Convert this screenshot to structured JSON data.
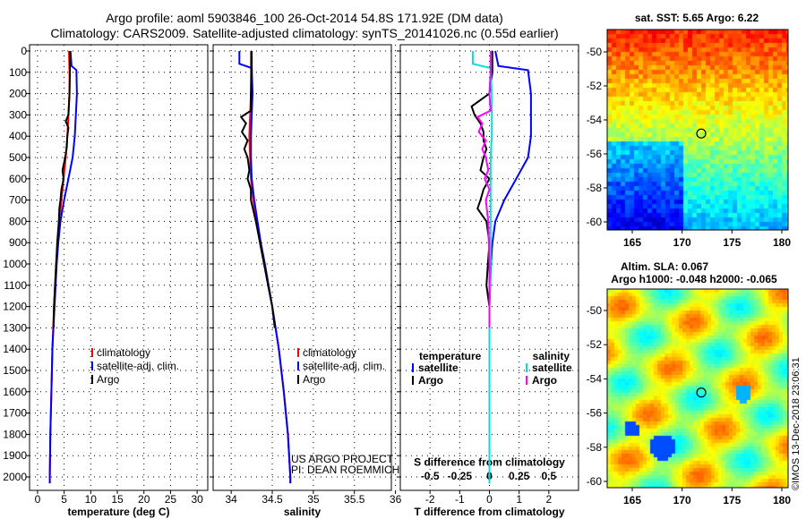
{
  "title_line1": "Argo profile: aoml 5903846_100 26-Oct-2014 54.8S 171.92E (DM data)",
  "title_line2": "Climatology: CARS2009. Satellite-adjusted climatology: synTS_20141026.nc (0.55d earlier)",
  "watermark": "©IMOS 13-Dec-2018 23:06:31",
  "colors": {
    "climatology": "#ff0000",
    "satellite": "#0000ff",
    "argo": "#000000",
    "sal_satellite": "#00e0e0",
    "sal_argo": "#ff00ff"
  },
  "depth_ticks": [
    0,
    100,
    200,
    300,
    400,
    500,
    600,
    700,
    800,
    900,
    1000,
    1100,
    1200,
    1300,
    1400,
    1500,
    1600,
    1700,
    1800,
    1900,
    2000
  ],
  "chart_data": [
    {
      "type": "line",
      "xlabel": "temperature (deg C)",
      "xticks": [
        0,
        5,
        10,
        15,
        20,
        25,
        30
      ],
      "xlim": [
        -1.5,
        32
      ],
      "ylim": [
        2060,
        -30
      ],
      "legend": [
        "climatology",
        "satellite-adj. clim.",
        "Argo"
      ],
      "series": [
        {
          "name": "climatology",
          "color": "#ff0000",
          "depth": [
            0,
            100,
            200,
            300,
            400,
            500,
            600,
            700,
            800,
            900,
            1000,
            1200,
            1400,
            1600,
            1800,
            2000,
            2030
          ],
          "values": [
            5.9,
            6.0,
            6.0,
            5.8,
            5.6,
            5.3,
            4.9,
            4.5,
            4.1,
            3.8,
            3.5,
            3.1,
            2.8,
            2.6,
            2.4,
            2.3,
            2.3
          ]
        },
        {
          "name": "satellite-adj. clim.",
          "color": "#0000ff",
          "depth": [
            0,
            70,
            90,
            200,
            300,
            400,
            500,
            600,
            700,
            800,
            900,
            1000,
            1200,
            1400,
            1600,
            1800,
            2000,
            2030
          ],
          "values": [
            6.2,
            6.4,
            7.3,
            7.4,
            7.2,
            7.0,
            6.6,
            5.8,
            5.0,
            4.3,
            3.9,
            3.6,
            3.2,
            2.8,
            2.6,
            2.4,
            2.3,
            2.3
          ]
        },
        {
          "name": "Argo",
          "color": "#000000",
          "depth": [
            0,
            100,
            200,
            300,
            330,
            360,
            400,
            450,
            500,
            560,
            600,
            650,
            700,
            740,
            800,
            900,
            1000,
            1100,
            1200,
            1300
          ],
          "values": [
            6.1,
            6.1,
            6.0,
            5.8,
            5.3,
            5.8,
            5.6,
            5.5,
            5.2,
            4.7,
            4.9,
            4.5,
            4.3,
            4.1,
            4.0,
            3.7,
            3.5,
            3.3,
            3.1,
            3.0
          ]
        }
      ]
    },
    {
      "type": "line",
      "xlabel": "salinity",
      "xticks": [
        34,
        34.5,
        35,
        35.5,
        36
      ],
      "xlim": [
        33.78,
        35.95
      ],
      "ylim": [
        2060,
        -30
      ],
      "legend": [
        "climatology",
        "satellite-adj. clim.",
        "Argo"
      ],
      "annotations": [
        "US ARGO PROJECT",
        "PI: DEAN ROEMMICH"
      ],
      "series": [
        {
          "name": "climatology",
          "color": "#ff0000",
          "depth": [
            0,
            100,
            200,
            300,
            400,
            500,
            600,
            700,
            800,
            900,
            1000,
            1200,
            1400,
            1600,
            1800,
            2000,
            2030
          ],
          "values": [
            34.24,
            34.24,
            34.24,
            34.23,
            34.22,
            34.23,
            34.24,
            34.27,
            34.31,
            34.35,
            34.4,
            34.5,
            34.58,
            34.64,
            34.69,
            34.72,
            34.72
          ]
        },
        {
          "name": "satellite-adj. clim.",
          "color": "#0000ff",
          "depth": [
            0,
            60,
            80,
            200,
            300,
            400,
            500,
            600,
            700,
            800,
            900,
            1000,
            1200,
            1400,
            1600,
            1800,
            2000,
            2030
          ],
          "values": [
            34.1,
            34.1,
            34.25,
            34.26,
            34.25,
            34.24,
            34.24,
            34.25,
            34.28,
            34.32,
            34.36,
            34.41,
            34.5,
            34.58,
            34.64,
            34.69,
            34.72,
            34.72
          ]
        },
        {
          "name": "Argo",
          "color": "#000000",
          "depth": [
            0,
            100,
            200,
            280,
            310,
            340,
            380,
            420,
            460,
            500,
            560,
            600,
            650,
            700,
            800,
            900,
            1000,
            1100,
            1200,
            1300
          ],
          "values": [
            34.25,
            34.25,
            34.24,
            34.24,
            34.12,
            34.18,
            34.13,
            34.2,
            34.16,
            34.2,
            34.22,
            34.2,
            34.24,
            34.24,
            34.3,
            34.35,
            34.4,
            34.45,
            34.5,
            34.53
          ]
        }
      ]
    },
    {
      "type": "line",
      "xlabel": "T difference from climatology",
      "xticks": [
        -2,
        -1,
        0,
        1,
        2
      ],
      "x2label": "S difference from climatology",
      "x2ticks": [
        -0.5,
        -0.25,
        0,
        0.25,
        0.5
      ],
      "xlim": [
        -3,
        3
      ],
      "ylim": [
        2060,
        -30
      ],
      "legend_temperature": {
        "title": "temperature",
        "items": [
          "satellite",
          "Argo"
        ]
      },
      "legend_salinity": {
        "title": "salinity",
        "items": [
          "satellite",
          "Argo"
        ]
      },
      "series": [
        {
          "name": "T satellite",
          "axis": "T",
          "color": "#0000ff",
          "depth": [
            0,
            70,
            90,
            200,
            300,
            400,
            500,
            600,
            700,
            800,
            900,
            1000,
            1200,
            1400,
            1600,
            2030
          ],
          "values": [
            0.2,
            0.3,
            1.3,
            1.4,
            1.4,
            1.4,
            1.3,
            0.9,
            0.5,
            0.2,
            0.1,
            0.05,
            0,
            0,
            0,
            0
          ]
        },
        {
          "name": "T Argo",
          "axis": "T",
          "color": "#000000",
          "depth": [
            0,
            100,
            200,
            260,
            300,
            340,
            380,
            420,
            460,
            500,
            560,
            600,
            650,
            700,
            740,
            800,
            900,
            1000,
            1100,
            1200,
            1300
          ],
          "values": [
            0.1,
            0.1,
            0,
            -0.6,
            -0.5,
            -0.3,
            -0.2,
            -0.2,
            -0.1,
            -0.2,
            -0.3,
            0,
            -0.2,
            -0.3,
            -0.4,
            -0.1,
            0,
            -0.05,
            -0.1,
            0,
            0
          ]
        },
        {
          "name": "S satellite",
          "axis": "S",
          "color": "#00e0e0",
          "depth": [
            0,
            60,
            80,
            200,
            300,
            400,
            500,
            600,
            700,
            800,
            900,
            1000,
            1200,
            1400,
            1600,
            2030
          ],
          "values": [
            -0.14,
            -0.14,
            0.01,
            0.02,
            0.02,
            0.02,
            0.01,
            0.01,
            0.01,
            0.01,
            0.01,
            0.01,
            0,
            0,
            0,
            0
          ]
        },
        {
          "name": "S Argo",
          "axis": "S",
          "color": "#ff00ff",
          "depth": [
            0,
            100,
            200,
            280,
            310,
            340,
            380,
            420,
            460,
            500,
            560,
            600,
            650,
            700,
            800,
            1000,
            1300
          ],
          "values": [
            0.01,
            0.01,
            0,
            0.01,
            -0.1,
            -0.06,
            -0.09,
            -0.03,
            -0.06,
            -0.03,
            -0.01,
            -0.04,
            0,
            -0.03,
            -0.01,
            0,
            0
          ]
        }
      ]
    }
  ],
  "maps": [
    {
      "title": "sat. SST: 5.65 Argo: 6.22",
      "lon_ticks": [
        165,
        170,
        175,
        180
      ],
      "lat_ticks": [
        -50,
        -52,
        -54,
        -56,
        -58,
        -60
      ],
      "profile": {
        "lon": 171.92,
        "lat": -54.8
      }
    },
    {
      "title_line1": "Altim. SLA: 0.067",
      "title_line2": "Argo h1000: -0.048 h2000: -0.065",
      "lon_ticks": [
        165,
        170,
        175,
        180
      ],
      "lat_ticks": [
        -50,
        -52,
        -54,
        -56,
        -58,
        -60
      ],
      "profile": {
        "lon": 171.92,
        "lat": -54.8
      }
    }
  ]
}
